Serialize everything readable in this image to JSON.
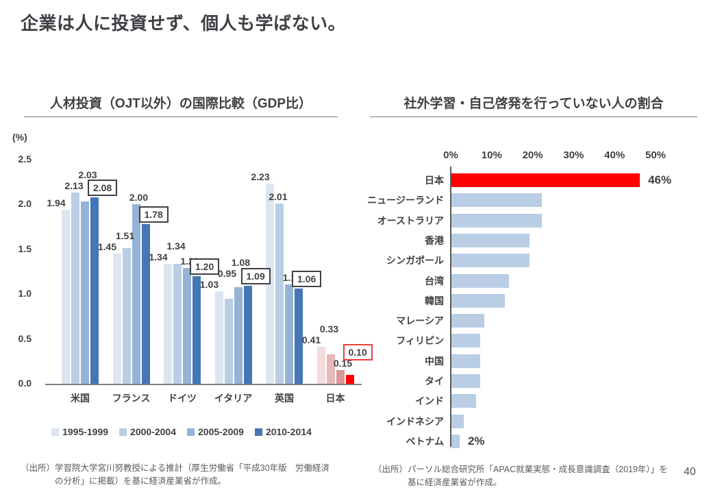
{
  "page": {
    "title": "企業は人に投資せず、個人も学ばない。",
    "page_number": "40"
  },
  "left_panel": {
    "title": "人材投資（OJT以外）の国際比較（GDP比）",
    "unit_label": "(%)",
    "source": "（出所）学習院大学宮川努教授による推計（厚生労働省「平成30年版　労働経済の分析」に掲載）を基に経済産業省が作成。"
  },
  "right_panel": {
    "title": "社外学習・自己啓発を行っていない人の割合",
    "source": "（出所）パーソル総合研究所「APAC就業実態・成長意識調査（2019年）」を基に経済産業省が作成。"
  },
  "chart_data": [
    {
      "id": "human-capital-investment-international-comparison",
      "type": "bar",
      "title": "人材投資（OJT以外）の国際比較（GDP比）",
      "ylabel": "(%)",
      "ylim": [
        0,
        2.5
      ],
      "yticks": [
        "2.5",
        "2.0",
        "1.5",
        "1.0",
        "0.5",
        "0.0"
      ],
      "grid": false,
      "legend_position": "bottom",
      "categories": [
        "米国",
        "フランス",
        "ドイツ",
        "イタリア",
        "英国",
        "日本"
      ],
      "series": [
        {
          "name": "1995-1999",
          "color": "#dce6f2",
          "japan_color": "#f2dcdb",
          "values": [
            1.94,
            1.45,
            1.34,
            1.03,
            2.23,
            0.41
          ]
        },
        {
          "name": "2000-2004",
          "color": "#b9cde5",
          "japan_color": "#e6b8b7",
          "values": [
            2.13,
            1.51,
            1.34,
            0.95,
            2.01,
            0.33
          ]
        },
        {
          "name": "2005-2009",
          "color": "#95b3d7",
          "japan_color": "#d99795",
          "values": [
            2.03,
            2.0,
            1.29,
            1.08,
            1.11,
            0.15
          ]
        },
        {
          "name": "2010-2014",
          "color": "#4576b5",
          "japan_color": "#fe0000",
          "values": [
            2.08,
            1.78,
            1.2,
            1.09,
            1.06,
            0.1
          ],
          "boxed_labels": true
        }
      ],
      "highlight_category": "日本",
      "highlight_box_color": "#e8403c"
    },
    {
      "id": "share-of-people-not-doing-self-development",
      "type": "bar-horizontal",
      "title": "社外学習・自己啓発を行っていない人の割合",
      "xlim": [
        0,
        50
      ],
      "xticks": [
        "0%",
        "10%",
        "20%",
        "30%",
        "40%",
        "50%"
      ],
      "categories": [
        "日本",
        "ニュージーランド",
        "オーストラリア",
        "香港",
        "シンガポール",
        "台湾",
        "韓国",
        "マレーシア",
        "フィリピン",
        "中国",
        "タイ",
        "インド",
        "インドネシア",
        "ベトナム"
      ],
      "values": [
        46,
        22,
        22,
        19,
        19,
        14,
        13,
        8,
        7,
        7,
        7,
        6,
        3,
        2
      ],
      "value_labels": {
        "日本": "46%",
        "ベトナム": "2%"
      },
      "bar_color": "#b9cde5",
      "highlight_category": "日本",
      "highlight_color": "#fe0000",
      "grid": false
    }
  ]
}
